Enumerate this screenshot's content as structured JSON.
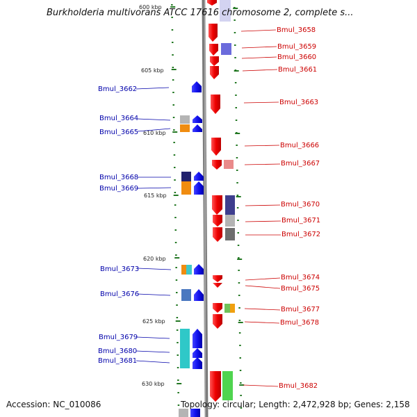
{
  "title": "Burkholderia multivorans ATCC 17616 chromosome 2, complete s...",
  "footer": {
    "accession": "Accession: NC_010086",
    "summary": "Topology: circular; Length: 2,472,928 bp; Genes: 2,158"
  },
  "scale_labels": [
    "600 kbp",
    "605 kbp",
    "610 kbp",
    "615 kbp",
    "620 kbp",
    "625 kbp",
    "630 kbp"
  ],
  "genes_left": [
    "Bmul_3662",
    "Bmul_3664",
    "Bmul_3665",
    "Bmul_3668",
    "Bmul_3669",
    "Bmul_3673",
    "Bmul_3676",
    "Bmul_3679",
    "Bmul_3680",
    "Bmul_3681"
  ],
  "genes_right": [
    "Bmul_3658",
    "Bmul_3659",
    "Bmul_3660",
    "Bmul_3661",
    "Bmul_3663",
    "Bmul_3666",
    "Bmul_3667",
    "Bmul_3670",
    "Bmul_3671",
    "Bmul_3672",
    "Bmul_3674",
    "Bmul_3675",
    "Bmul_3677",
    "Bmul_3678",
    "Bmul_3682"
  ],
  "colors": {
    "forward_strand": "#ee1111",
    "reverse_strand": "#1111ee",
    "backbone": "#888888",
    "tick_marks": "#227722",
    "label_left": "#0000aa",
    "label_right": "#cc0000"
  }
}
